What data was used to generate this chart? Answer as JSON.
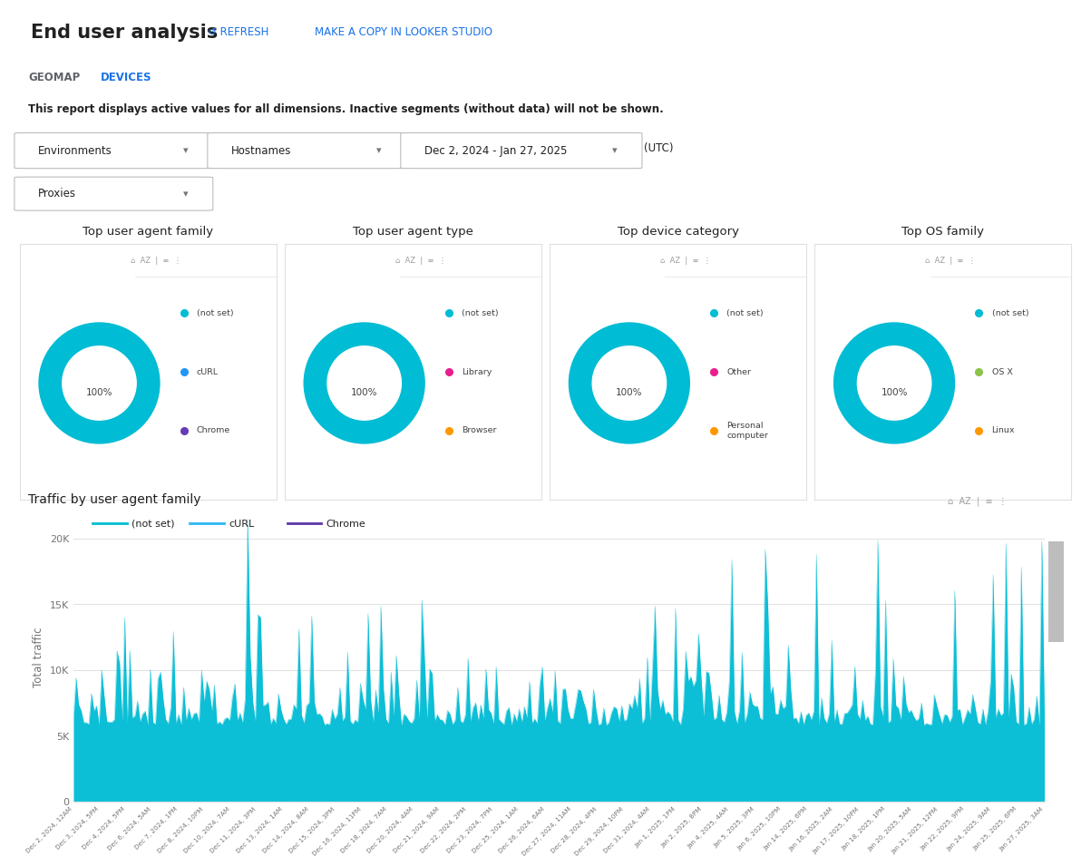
{
  "title": "End user analysis",
  "tab_geomap": "GEOMAP",
  "tab_devices": "DEVICES",
  "refresh_label": "↺ REFRESH",
  "copy_label": "MAKE A COPY IN LOOKER STUDIO",
  "info_text": "This report displays active values for all dimensions. Inactive segments (without data) will not be shown.",
  "dropdown_labels": [
    "Environments",
    "Hostnames",
    "Dec 2, 2024 - Jan 27, 2025",
    "Proxies"
  ],
  "utc_label": "(UTC)",
  "donut_charts": [
    {
      "title": "Top user agent family",
      "percent": "100%",
      "color": "#00bcd4",
      "legend": [
        {
          "label": "(not set)",
          "color": "#00bcd4"
        },
        {
          "label": "cURL",
          "color": "#2196f3"
        },
        {
          "label": "Chrome",
          "color": "#673ab7"
        }
      ]
    },
    {
      "title": "Top user agent type",
      "percent": "100%",
      "color": "#00bcd4",
      "legend": [
        {
          "label": "(not set)",
          "color": "#00bcd4"
        },
        {
          "label": "Library",
          "color": "#e91e8c"
        },
        {
          "label": "Browser",
          "color": "#ff9800"
        }
      ]
    },
    {
      "title": "Top device category",
      "percent": "100%",
      "color": "#00bcd4",
      "legend": [
        {
          "label": "(not set)",
          "color": "#00bcd4"
        },
        {
          "label": "Other",
          "color": "#e91e8c"
        },
        {
          "label": "Personal\ncomputer",
          "color": "#ff9800"
        }
      ]
    },
    {
      "title": "Top OS family",
      "percent": "100%",
      "color": "#00bcd4",
      "legend": [
        {
          "label": "(not set)",
          "color": "#00bcd4"
        },
        {
          "label": "OS X",
          "color": "#8bc34a"
        },
        {
          "label": "Linux",
          "color": "#ff9800"
        }
      ]
    }
  ],
  "line_chart_title": "Traffic by user agent family",
  "line_chart_ylabel": "Total traffic",
  "line_chart_yticks": [
    0,
    5000,
    10000,
    15000,
    20000
  ],
  "line_chart_ytick_labels": [
    "0",
    "5K",
    "10K",
    "15K",
    "20K"
  ],
  "line_chart_ylim": [
    0,
    22000
  ],
  "line_color": "#00bcd4",
  "legend_entries": [
    {
      "label": "(not set)",
      "color": "#00bcd4"
    },
    {
      "label": "cURL",
      "color": "#29b6f6"
    },
    {
      "label": "Chrome",
      "color": "#5c35a8"
    }
  ],
  "xtick_labels": [
    "Dec 2, 2024, 12AM",
    "Dec 3, 2024, 5PM",
    "Dec 4, 2024, 5PM",
    "Dec 6, 2024, 5AM",
    "Dec 7, 2024, 1PM",
    "Dec 8, 2024, 10PM",
    "Dec 10, 2024, 7AM",
    "Dec 11, 2024, 3PM",
    "Dec 13, 2024, 1AM",
    "Dec 14, 2024, 8AM",
    "Dec 15, 2024, 3PM",
    "Dec 16, 2024, 11PM",
    "Dec 18, 2024, 7AM",
    "Dec 20, 2024, 4AM",
    "Dec 21, 2024, 9AM",
    "Dec 22, 2024, 2PM",
    "Dec 23, 2024, 7PM",
    "Dec 25, 2024, 1AM",
    "Dec 26, 2024, 6AM",
    "Dec 27, 2024, 11AM",
    "Dec 28, 2024, 4PM",
    "Dec 29, 2024, 10PM",
    "Dec 31, 2024, 4AM",
    "Jan 1, 2025, 1PM",
    "Jan 2, 2025, 8PM",
    "Jan 4, 2025, 4AM",
    "Jan 5, 2025, 3PM",
    "Jan 6, 2025, 10PM",
    "Jan 14, 2025, 6PM",
    "Jan 16, 2025, 2AM",
    "Jan 17, 2025, 10PM",
    "Jan 18, 2025, 1PM",
    "Jan 20, 2025, 5AM",
    "Jan 21, 2025, 12PM",
    "Jan 22, 2025, 9PM",
    "Jan 24, 2025, 9AM",
    "Jan 25, 2025, 6PM",
    "Jan 27, 2025, 3AM"
  ],
  "background_color": "#ffffff",
  "grid_color": "#e0e0e0",
  "text_color_dark": "#212121",
  "text_color_blue": "#1a73e8",
  "separator_color": "#e0e0e0"
}
